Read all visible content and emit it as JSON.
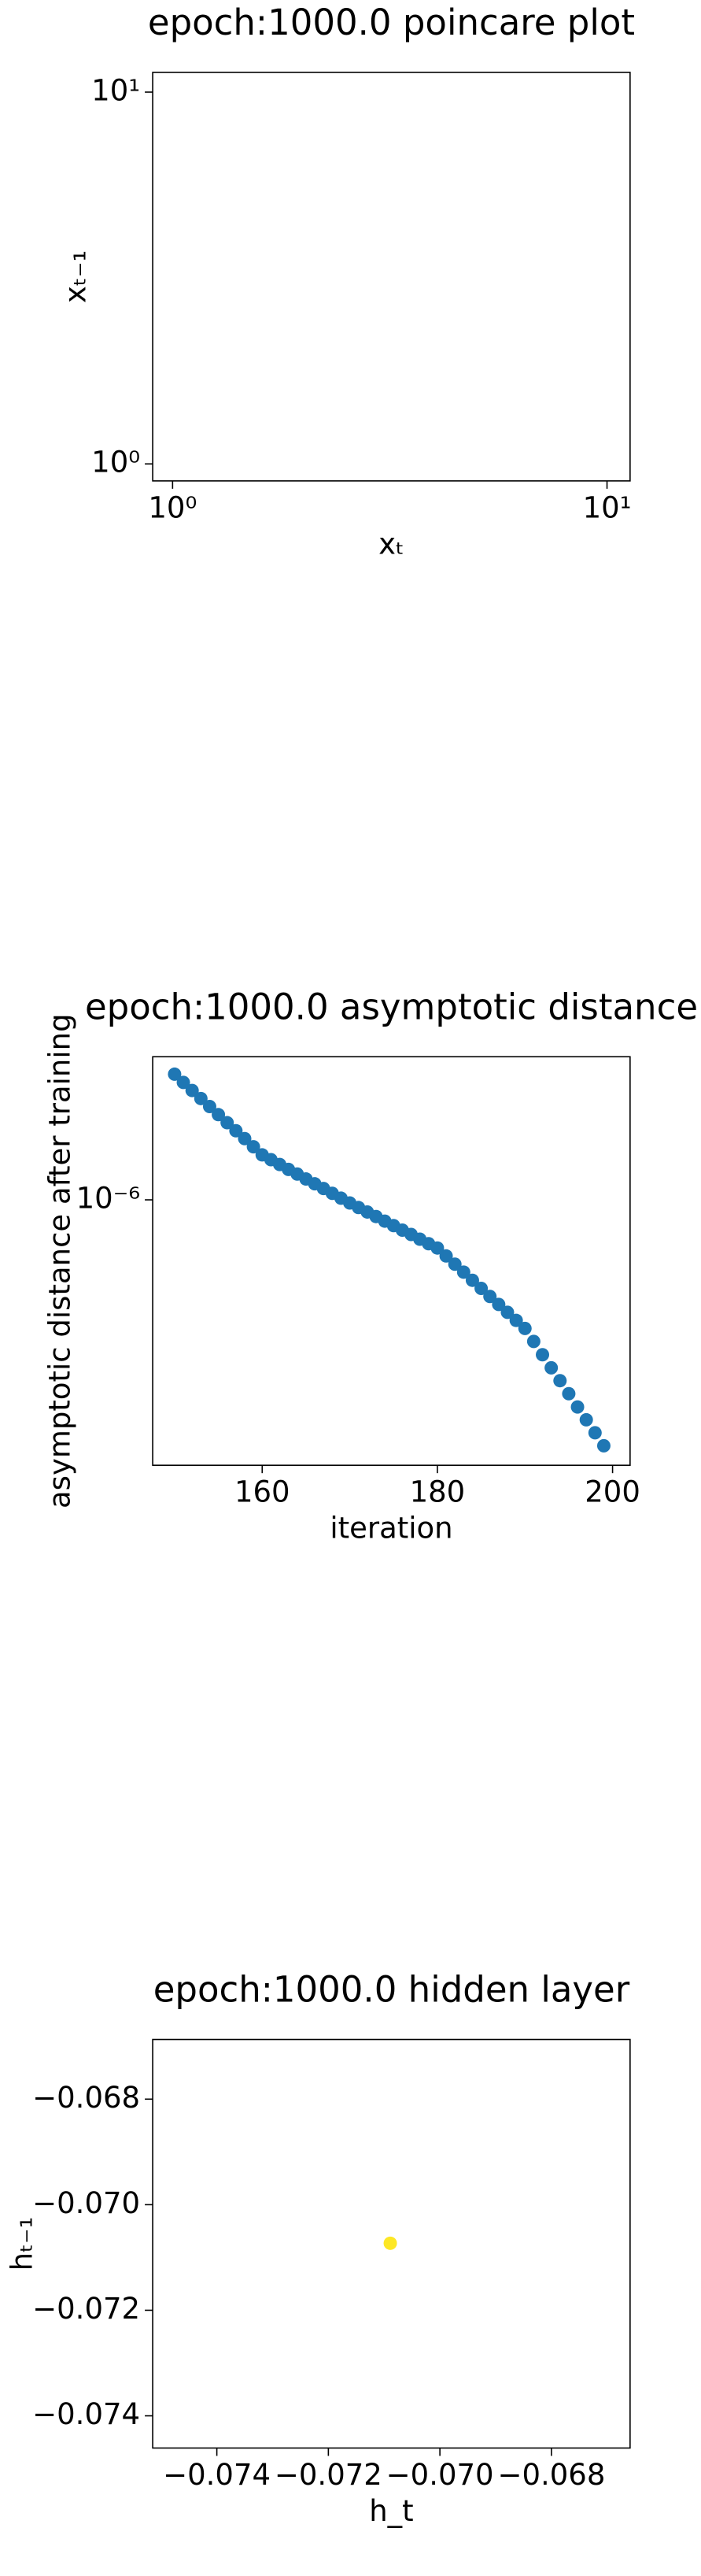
{
  "chart_data": [
    {
      "type": "scatter",
      "title": "epoch:1000.0 poincare plot",
      "xlabel": "xₜ",
      "ylabel": "xₜ₋₁",
      "xlog": true,
      "ylog": true,
      "xlim": [
        0.9,
        11.3
      ],
      "ylim": [
        0.9,
        11.3
      ],
      "xticks": [
        {
          "value": 1,
          "label": "10⁰"
        },
        {
          "value": 10,
          "label": "10¹"
        }
      ],
      "yticks": [
        {
          "value": 1,
          "label": "10⁰"
        },
        {
          "value": 10,
          "label": "10¹"
        }
      ]
    },
    {
      "type": "scatter",
      "title": "epoch:1000.0 asymptotic distance",
      "xlabel": "iteration",
      "ylabel": "asymptotic distance after training",
      "ylog": true,
      "color": "#1f77b4",
      "xlim": [
        147.5,
        202
      ],
      "ylim": [
        3.26e-07,
        1.83e-06
      ],
      "xticks": [
        160,
        180,
        200
      ],
      "yticks": [
        {
          "value": 1e-06,
          "label": "10⁻⁶"
        }
      ],
      "x": [
        150,
        151,
        152,
        153,
        154,
        155,
        156,
        157,
        158,
        159,
        160,
        161,
        162,
        163,
        164,
        165,
        166,
        167,
        168,
        169,
        170,
        171,
        172,
        173,
        174,
        175,
        176,
        177,
        178,
        179,
        180,
        181,
        182,
        183,
        184,
        185,
        186,
        187,
        188,
        189,
        190,
        191,
        192,
        193,
        194,
        195,
        196,
        197,
        198,
        199
      ],
      "values": [
        1.7e-06,
        1.642e-06,
        1.587e-06,
        1.534e-06,
        1.483e-06,
        1.433e-06,
        1.385e-06,
        1.339e-06,
        1.295e-06,
        1.251e-06,
        1.209e-06,
        1.185e-06,
        1.161e-06,
        1.137e-06,
        1.115e-06,
        1.092e-06,
        1.07e-06,
        1.049e-06,
        1.028e-06,
        1.007e-06,
        9.87e-07,
        9.68e-07,
        9.5e-07,
        9.32e-07,
        9.14e-07,
        8.97e-07,
        8.8e-07,
        8.64e-07,
        8.47e-07,
        8.31e-07,
        8.16e-07,
        7.89e-07,
        7.62e-07,
        7.37e-07,
        7.12e-07,
        6.88e-07,
        6.65e-07,
        6.43e-07,
        6.22e-07,
        6.01e-07,
        5.81e-07,
        5.5e-07,
        5.2e-07,
        4.92e-07,
        4.66e-07,
        4.41e-07,
        4.17e-07,
        3.95e-07,
        3.74e-07,
        3.54e-07
      ]
    },
    {
      "type": "scatter",
      "title": "epoch:1000.0 hidden layer",
      "xlabel": "h_t",
      "ylabel": "hₜ₋₁",
      "color": "#fde725",
      "xlim": [
        -0.07515,
        -0.06659
      ],
      "ylim": [
        -0.07461,
        -0.06687
      ],
      "xticks": [
        {
          "value": -0.074,
          "label": "−0.074"
        },
        {
          "value": -0.072,
          "label": "−0.072"
        },
        {
          "value": -0.07,
          "label": "−0.070"
        },
        {
          "value": -0.068,
          "label": "−0.068"
        }
      ],
      "yticks": [
        {
          "value": -0.068,
          "label": "−0.068"
        },
        {
          "value": -0.07,
          "label": "−0.070"
        },
        {
          "value": -0.072,
          "label": "−0.072"
        },
        {
          "value": -0.074,
          "label": "−0.074"
        }
      ],
      "x": [
        -0.07089
      ],
      "values": [
        -0.07073
      ]
    }
  ]
}
